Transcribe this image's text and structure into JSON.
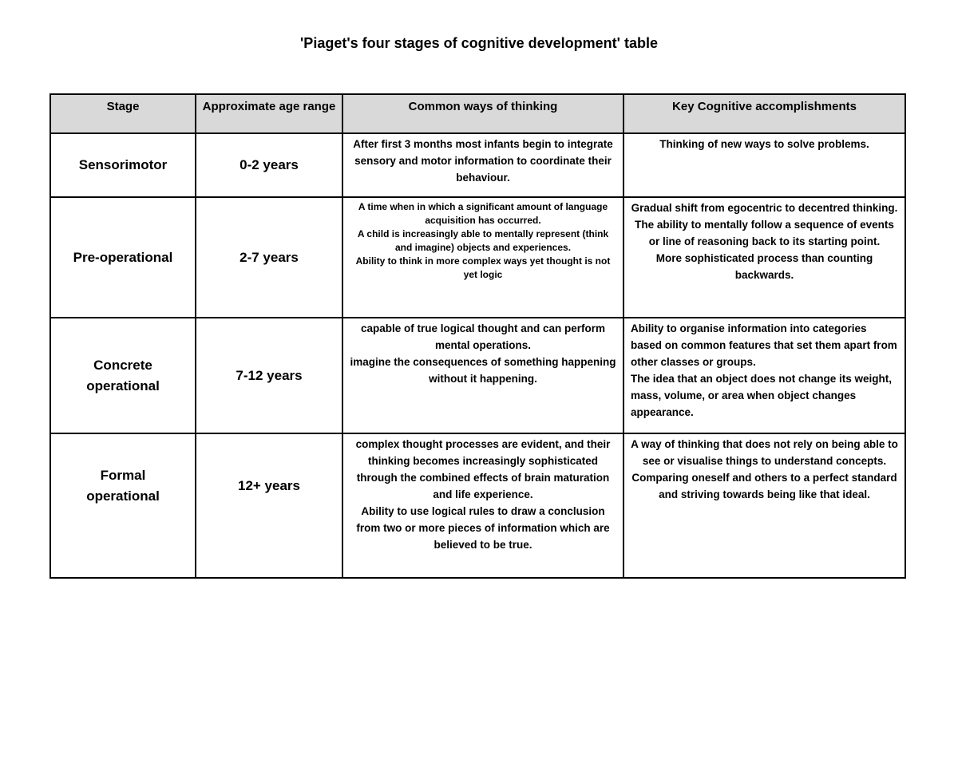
{
  "page": {
    "title": "'Piaget's four stages of cognitive development' table"
  },
  "colors": {
    "header_bg": "#d9d9d9",
    "border": "#000000",
    "text": "#000000",
    "page_bg": "#ffffff"
  },
  "table": {
    "headers": [
      "Stage",
      "Approximate age range",
      "Common ways of thinking",
      "Key Cognitive accomplishments"
    ],
    "rows": [
      {
        "stage": "Sensorimotor",
        "age_range": "0-2 years",
        "common_ways_of_thinking": "After first 3 months most infants begin to integrate sensory and motor information to coordinate their behaviour.",
        "key_cognitive_accomplishments": "Thinking of new ways to solve problems."
      },
      {
        "stage": "Pre-operational",
        "age_range": "2-7 years",
        "common_ways_of_thinking": "A time when in which a significant amount of language acquisition has occurred.\nA child is increasingly able to mentally represent (think and imagine) objects and experiences.\nAbility to think in more complex ways yet thought is not yet logic",
        "key_cognitive_accomplishments": "Gradual shift from egocentric to decentred thinking.\nThe ability to mentally follow a sequence of events or line of reasoning back to its starting point.\nMore sophisticated process than counting backwards."
      },
      {
        "stage": "Concrete operational",
        "age_range": "7-12 years",
        "common_ways_of_thinking": "capable of true logical thought and can perform mental operations.\nimagine the consequences of something happening without it happening.",
        "key_cognitive_accomplishments": "Ability to organise information into categories based on common features that set them apart from other classes or groups.\nThe idea that an object does not change its weight, mass, volume, or area when object changes appearance."
      },
      {
        "stage": "Formal operational",
        "age_range": "12+ years",
        "common_ways_of_thinking": "complex thought processes are evident, and their thinking becomes increasingly sophisticated through the combined effects of brain maturation and life experience.\nAbility to use logical rules to draw a conclusion from two or more pieces of information which are believed to be true.",
        "key_cognitive_accomplishments": "A way of thinking that does not rely on being able to see or visualise things to understand concepts.\nComparing oneself and others to a perfect standard and striving towards being like that ideal."
      }
    ]
  }
}
